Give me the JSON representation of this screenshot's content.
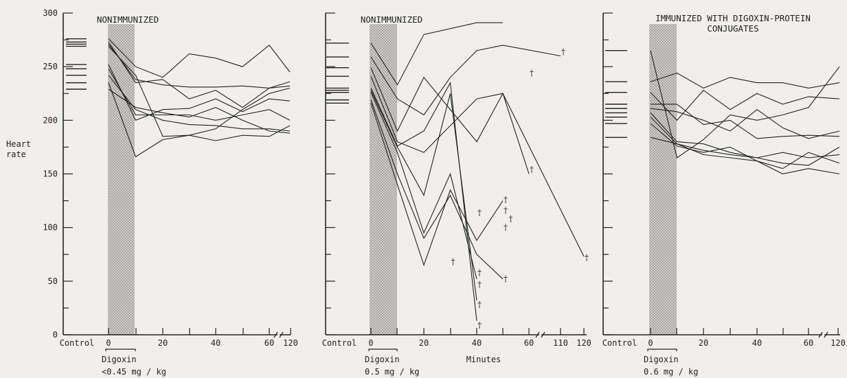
{
  "chart_data": [
    {
      "type": "line",
      "title": "NONIMMUNIZED",
      "ylabel_lines": [
        "Heart",
        "rate"
      ],
      "ylim": [
        0,
        300
      ],
      "yticks": [
        0,
        50,
        100,
        150,
        200,
        250,
        300
      ],
      "x_ticks": [
        {
          "x": 0,
          "label": "0"
        },
        {
          "x": 20,
          "label": "20"
        },
        {
          "x": 40,
          "label": "40"
        },
        {
          "x": 60,
          "label": "60"
        },
        {
          "x": 120,
          "label": "120"
        }
      ],
      "x_control_label": "Control",
      "dose_label_lines": [
        "Digoxin",
        "<0.45 mg / kg"
      ],
      "xlabel": "",
      "infusion_window": [
        0,
        10
      ],
      "control_values": [
        276,
        273,
        271,
        269,
        252,
        248,
        242,
        235,
        229
      ],
      "series": [
        {
          "x": [
            0,
            10,
            20,
            30,
            40,
            50,
            60,
            70
          ],
          "y": [
            276,
            250,
            240,
            262,
            258,
            250,
            270,
            245
          ]
        },
        {
          "x": [
            0,
            10,
            20,
            30,
            40,
            50,
            60,
            70
          ],
          "y": [
            273,
            235,
            238,
            220,
            228,
            212,
            230,
            236
          ]
        },
        {
          "x": [
            0,
            10,
            20,
            30,
            40,
            50,
            60,
            70
          ],
          "y": [
            271,
            238,
            233,
            231,
            231,
            232,
            230,
            232
          ]
        },
        {
          "x": [
            0,
            10,
            20,
            30,
            40,
            50,
            60,
            70
          ],
          "y": [
            269,
            242,
            185,
            186,
            192,
            210,
            225,
            230
          ]
        },
        {
          "x": [
            0,
            10,
            20,
            30,
            40,
            50,
            60,
            70
          ],
          "y": [
            252,
            200,
            210,
            211,
            220,
            208,
            220,
            218
          ]
        },
        {
          "x": [
            0,
            10,
            20,
            30,
            40,
            50,
            60,
            70
          ],
          "y": [
            248,
            205,
            205,
            205,
            200,
            205,
            210,
            200
          ]
        },
        {
          "x": [
            0,
            10,
            20,
            30,
            40,
            50,
            60,
            70
          ],
          "y": [
            242,
            210,
            200,
            196,
            195,
            192,
            192,
            190
          ]
        },
        {
          "x": [
            0,
            10,
            20,
            30,
            40,
            50,
            60,
            70
          ],
          "y": [
            235,
            166,
            182,
            186,
            181,
            186,
            185,
            195
          ]
        },
        {
          "x": [
            0,
            10,
            20,
            30,
            40,
            50,
            60,
            70
          ],
          "y": [
            229,
            212,
            207,
            203,
            212,
            200,
            190,
            188
          ]
        }
      ],
      "deaths": []
    },
    {
      "type": "line",
      "title": "NONIMMUNIZED",
      "ylim": [
        0,
        300
      ],
      "yticks": [
        0,
        50,
        100,
        150,
        200,
        250,
        300
      ],
      "x_ticks": [
        {
          "x": 0,
          "label": "0"
        },
        {
          "x": 20,
          "label": "20"
        },
        {
          "x": 40,
          "label": "40"
        },
        {
          "x": 60,
          "label": "60"
        },
        {
          "x": 110,
          "label": "110"
        },
        {
          "x": 120,
          "label": "120"
        }
      ],
      "x_control_label": "Control",
      "dose_label_lines": [
        "Digoxin",
        "0.5 mg / kg"
      ],
      "xlabel": "Minutes",
      "infusion_window": [
        0,
        10
      ],
      "control_values": [
        272,
        259,
        249,
        241,
        230,
        228,
        226,
        219,
        216
      ],
      "series": [
        {
          "x": [
            0,
            10,
            20,
            40,
            50
          ],
          "y": [
            272,
            233,
            280,
            291,
            291
          ]
        },
        {
          "x": [
            0,
            10,
            20,
            30,
            40,
            50,
            110
          ],
          "y": [
            259,
            220,
            205,
            240,
            265,
            270,
            260
          ]
        },
        {
          "x": [
            0,
            10,
            20,
            40,
            50,
            60
          ],
          "y": [
            249,
            190,
            240,
            180,
            225,
            150
          ]
        },
        {
          "x": [
            0,
            10,
            20,
            30,
            40,
            50,
            120
          ],
          "y": [
            241,
            180,
            170,
            195,
            220,
            225,
            73
          ]
        },
        {
          "x": [
            0,
            10,
            20,
            30,
            40
          ],
          "y": [
            230,
            176,
            190,
            235,
            13
          ]
        },
        {
          "x": [
            0,
            10,
            20,
            30,
            40
          ],
          "y": [
            228,
            175,
            130,
            225,
            32
          ]
        },
        {
          "x": [
            0,
            10,
            20,
            30,
            40
          ],
          "y": [
            226,
            170,
            95,
            150,
            52
          ]
        },
        {
          "x": [
            0,
            10,
            20,
            30,
            40,
            50
          ],
          "y": [
            219,
            150,
            90,
            130,
            75,
            52
          ]
        },
        {
          "x": [
            0,
            10,
            20,
            30,
            40,
            50
          ],
          "y": [
            216,
            140,
            65,
            135,
            88,
            125
          ]
        }
      ],
      "deaths": [
        {
          "x": 30,
          "y": 68
        },
        {
          "x": 40,
          "y": 58
        },
        {
          "x": 40,
          "y": 47
        },
        {
          "x": 40,
          "y": 28
        },
        {
          "x": 40,
          "y": 9
        },
        {
          "x": 40,
          "y": 114
        },
        {
          "x": 50,
          "y": 126
        },
        {
          "x": 50,
          "y": 116
        },
        {
          "x": 52,
          "y": 108
        },
        {
          "x": 50,
          "y": 100
        },
        {
          "x": 50,
          "y": 52
        },
        {
          "x": 60,
          "y": 154
        },
        {
          "x": 60,
          "y": 244
        },
        {
          "x": 110,
          "y": 264
        },
        {
          "x": 120,
          "y": 72
        }
      ]
    },
    {
      "type": "line",
      "title_lines": [
        "IMMUNIZED WITH DIGOXIN-PROTEIN",
        "CONJUGATES"
      ],
      "ylim": [
        0,
        300
      ],
      "yticks": [
        0,
        50,
        100,
        150,
        200,
        250,
        300
      ],
      "x_ticks": [
        {
          "x": 0,
          "label": "0"
        },
        {
          "x": 20,
          "label": "20"
        },
        {
          "x": 40,
          "label": "40"
        },
        {
          "x": 60,
          "label": "60"
        },
        {
          "x": 120,
          "label": "120"
        }
      ],
      "x_control_label": "Control",
      "dose_label_lines": [
        "Digoxin",
        "0.6 mg / kg"
      ],
      "xlabel": "",
      "infusion_window": [
        0,
        10
      ],
      "control_values": [
        265,
        236,
        226,
        215,
        211,
        207,
        203,
        197,
        184
      ],
      "series": [
        {
          "x": [
            0,
            10,
            20,
            30,
            40,
            50,
            60,
            70
          ],
          "y": [
            265,
            165,
            182,
            205,
            200,
            205,
            212,
            250
          ]
        },
        {
          "x": [
            0,
            10,
            20,
            30,
            40,
            50,
            60,
            70
          ],
          "y": [
            236,
            244,
            230,
            240,
            235,
            235,
            230,
            235
          ]
        },
        {
          "x": [
            0,
            10,
            20,
            30,
            40,
            50,
            60,
            70
          ],
          "y": [
            226,
            200,
            228,
            210,
            225,
            215,
            222,
            220
          ]
        },
        {
          "x": [
            0,
            10,
            20,
            30,
            40,
            50,
            60,
            70
          ],
          "y": [
            215,
            215,
            196,
            200,
            183,
            185,
            186,
            185
          ]
        },
        {
          "x": [
            0,
            10,
            20,
            30,
            40,
            50,
            60,
            70
          ],
          "y": [
            211,
            208,
            200,
            190,
            210,
            193,
            183,
            190
          ]
        },
        {
          "x": [
            0,
            10,
            20,
            30,
            40,
            50,
            60,
            70
          ],
          "y": [
            207,
            180,
            178,
            170,
            165,
            160,
            158,
            175
          ]
        },
        {
          "x": [
            0,
            10,
            20,
            30,
            40,
            50,
            60,
            70
          ],
          "y": [
            203,
            178,
            172,
            168,
            165,
            170,
            165,
            168
          ]
        },
        {
          "x": [
            0,
            10,
            20,
            30,
            40,
            50,
            60,
            70
          ],
          "y": [
            197,
            176,
            170,
            175,
            162,
            155,
            170,
            160
          ]
        },
        {
          "x": [
            0,
            10,
            20,
            30,
            40,
            50,
            60,
            70
          ],
          "y": [
            184,
            178,
            168,
            165,
            162,
            150,
            155,
            150
          ]
        }
      ],
      "deaths": []
    }
  ]
}
